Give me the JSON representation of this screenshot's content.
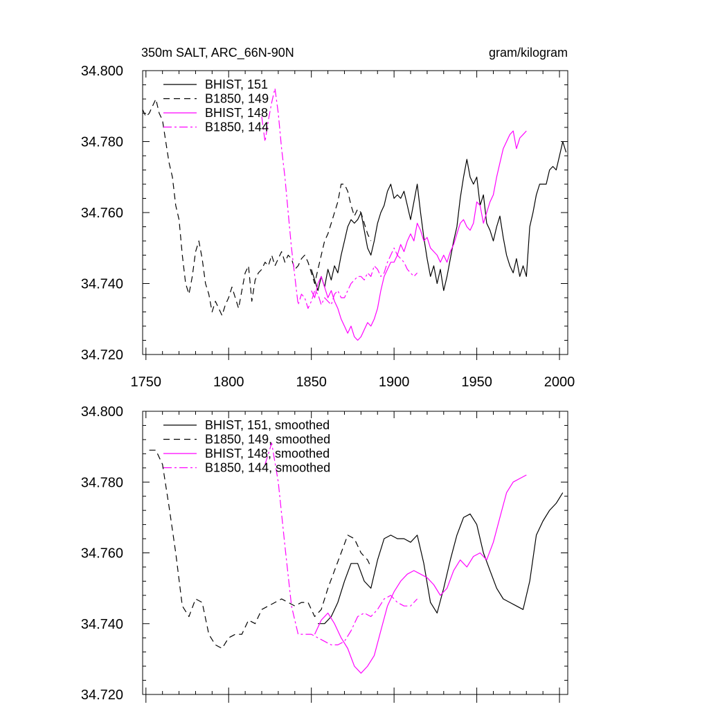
{
  "chart_data": [
    {
      "type": "line",
      "title_left": "350m SALT, ARC_66N-90N",
      "title_right": "gram/kilogram",
      "xlim": [
        1748,
        2005
      ],
      "ylim": [
        34.72,
        34.8
      ],
      "xticks": [
        "1750",
        "1800",
        "1850",
        "1900",
        "1950",
        "2000"
      ],
      "yticks": [
        "34.720",
        "34.740",
        "34.760",
        "34.780",
        "34.800"
      ],
      "series": [
        {
          "name": "BHIST, 151",
          "color": "#000000",
          "dash": "solid",
          "x": [
            1850,
            1852,
            1854,
            1856,
            1858,
            1860,
            1862,
            1864,
            1866,
            1868,
            1870,
            1872,
            1874,
            1876,
            1878,
            1880,
            1882,
            1884,
            1886,
            1888,
            1890,
            1892,
            1894,
            1896,
            1898,
            1900,
            1902,
            1904,
            1906,
            1908,
            1910,
            1912,
            1914,
            1916,
            1918,
            1920,
            1922,
            1924,
            1926,
            1928,
            1930,
            1932,
            1934,
            1936,
            1938,
            1940,
            1942,
            1944,
            1946,
            1948,
            1950,
            1952,
            1954,
            1956,
            1958,
            1960,
            1962,
            1964,
            1966,
            1968,
            1970,
            1972,
            1974,
            1976,
            1978,
            1980,
            1982,
            1984,
            1986,
            1988,
            1990,
            1992,
            1994,
            1996,
            1998,
            2000,
            2002,
            2004
          ],
          "values": [
            34.744,
            34.741,
            34.738,
            34.742,
            34.739,
            34.744,
            34.741,
            34.745,
            34.743,
            34.748,
            34.752,
            34.756,
            34.758,
            34.757,
            34.758,
            34.76,
            34.755,
            34.75,
            34.748,
            34.752,
            34.757,
            34.76,
            34.762,
            34.766,
            34.768,
            34.764,
            34.765,
            34.764,
            34.766,
            34.762,
            34.758,
            34.763,
            34.768,
            34.76,
            34.753,
            34.747,
            34.742,
            34.745,
            34.74,
            34.744,
            34.738,
            34.742,
            34.747,
            34.752,
            34.756,
            34.764,
            34.77,
            34.775,
            34.77,
            34.768,
            34.77,
            34.762,
            34.765,
            34.757,
            34.755,
            34.752,
            34.756,
            34.759,
            34.753,
            34.748,
            34.745,
            34.743,
            34.747,
            34.742,
            34.745,
            34.742,
            34.756,
            34.76,
            34.765,
            34.768,
            34.768,
            34.768,
            34.772,
            34.773,
            34.772,
            34.776,
            34.78,
            34.777
          ]
        },
        {
          "name": "B1850, 149",
          "color": "#000000",
          "dash": "dash",
          "x": [
            1748,
            1750,
            1752,
            1754,
            1756,
            1758,
            1760,
            1762,
            1764,
            1766,
            1768,
            1770,
            1772,
            1774,
            1776,
            1778,
            1780,
            1782,
            1784,
            1786,
            1788,
            1790,
            1792,
            1794,
            1796,
            1798,
            1800,
            1802,
            1804,
            1806,
            1808,
            1810,
            1812,
            1814,
            1816,
            1818,
            1820,
            1822,
            1824,
            1826,
            1828,
            1830,
            1832,
            1834,
            1836,
            1838,
            1840,
            1842,
            1844,
            1846,
            1848,
            1850,
            1852,
            1854,
            1856,
            1858,
            1860,
            1862,
            1864,
            1866,
            1868,
            1870,
            1872,
            1874,
            1876,
            1878,
            1880,
            1882,
            1884,
            1886
          ],
          "values": [
            34.789,
            34.787,
            34.788,
            34.79,
            34.792,
            34.788,
            34.786,
            34.78,
            34.774,
            34.77,
            34.762,
            34.758,
            34.748,
            34.74,
            34.737,
            34.742,
            34.749,
            34.752,
            34.747,
            34.74,
            34.737,
            34.732,
            34.735,
            34.733,
            34.731,
            34.734,
            34.736,
            34.739,
            34.736,
            34.733,
            34.738,
            34.743,
            34.745,
            34.735,
            34.741,
            34.743,
            34.744,
            34.746,
            34.745,
            34.748,
            34.745,
            34.747,
            34.749,
            34.746,
            34.748,
            34.747,
            34.744,
            34.745,
            34.747,
            34.748,
            34.746,
            34.743,
            34.74,
            34.744,
            34.748,
            34.752,
            34.754,
            34.757,
            34.76,
            34.763,
            34.768,
            34.768,
            34.766,
            34.762,
            34.759,
            34.761,
            34.76,
            34.757,
            34.754,
            34.752
          ]
        },
        {
          "name": "BHIST, 148",
          "color": "#ff00ff",
          "dash": "solid",
          "x": [
            1850,
            1852,
            1854,
            1856,
            1858,
            1860,
            1862,
            1864,
            1866,
            1868,
            1870,
            1872,
            1874,
            1876,
            1878,
            1880,
            1882,
            1884,
            1886,
            1888,
            1890,
            1892,
            1894,
            1896,
            1898,
            1900,
            1902,
            1904,
            1906,
            1908,
            1910,
            1912,
            1914,
            1916,
            1918,
            1920,
            1922,
            1924,
            1926,
            1928,
            1930,
            1932,
            1934,
            1936,
            1938,
            1940,
            1942,
            1944,
            1946,
            1948,
            1950,
            1952,
            1954,
            1956,
            1958,
            1960,
            1962,
            1964,
            1966,
            1968,
            1970,
            1972,
            1974,
            1976,
            1978,
            1980
          ],
          "values": [
            34.738,
            34.736,
            34.74,
            34.742,
            34.739,
            34.736,
            34.738,
            34.735,
            34.733,
            34.73,
            34.728,
            34.726,
            34.728,
            34.725,
            34.724,
            34.725,
            34.727,
            34.729,
            34.728,
            34.73,
            34.733,
            34.738,
            34.742,
            34.744,
            34.746,
            34.746,
            34.748,
            34.751,
            34.749,
            34.752,
            34.754,
            34.752,
            34.757,
            34.755,
            34.752,
            34.753,
            34.75,
            34.749,
            34.748,
            34.746,
            34.748,
            34.746,
            34.749,
            34.751,
            34.754,
            34.757,
            34.758,
            34.756,
            34.755,
            34.757,
            34.763,
            34.762,
            34.757,
            34.76,
            34.763,
            34.765,
            34.77,
            34.774,
            34.778,
            34.78,
            34.782,
            34.783,
            34.778,
            34.781,
            34.782,
            34.783
          ]
        },
        {
          "name": "B1850, 144",
          "color": "#ff00ff",
          "dash": "dashdot",
          "x": [
            1820,
            1822,
            1824,
            1826,
            1828,
            1830,
            1832,
            1834,
            1836,
            1838,
            1840,
            1842,
            1844,
            1846,
            1848,
            1850,
            1852,
            1854,
            1856,
            1858,
            1860,
            1862,
            1864,
            1866,
            1868,
            1870,
            1872,
            1874,
            1876,
            1878,
            1880,
            1882,
            1884,
            1886,
            1888,
            1890,
            1892,
            1894,
            1896,
            1898,
            1900,
            1902,
            1904,
            1906,
            1908,
            1910,
            1912,
            1914
          ],
          "values": [
            34.787,
            34.78,
            34.786,
            34.791,
            34.795,
            34.788,
            34.778,
            34.77,
            34.76,
            34.75,
            34.742,
            34.734,
            34.737,
            34.736,
            34.733,
            34.735,
            34.738,
            34.737,
            34.734,
            34.736,
            34.735,
            34.734,
            34.737,
            34.738,
            34.736,
            34.736,
            34.738,
            34.74,
            34.741,
            34.742,
            34.742,
            34.741,
            34.743,
            34.742,
            34.745,
            34.744,
            34.742,
            34.743,
            34.746,
            34.748,
            34.75,
            34.748,
            34.747,
            34.746,
            34.744,
            34.743,
            34.742,
            34.743
          ]
        }
      ],
      "legend": {
        "position": "top-left",
        "entries": [
          "BHIST, 151",
          "B1850, 149",
          "BHIST, 148",
          "B1850, 144"
        ]
      }
    },
    {
      "type": "line",
      "xlim": [
        1748,
        2005
      ],
      "ylim": [
        34.72,
        34.8
      ],
      "yticks": [
        "34.720",
        "34.740",
        "34.760",
        "34.780",
        "34.800"
      ],
      "series": [
        {
          "name": "BHIST, 151, smoothed",
          "color": "#000000",
          "dash": "solid",
          "x": [
            1854,
            1858,
            1862,
            1866,
            1870,
            1874,
            1878,
            1882,
            1886,
            1890,
            1894,
            1898,
            1902,
            1906,
            1910,
            1914,
            1918,
            1922,
            1926,
            1930,
            1934,
            1938,
            1942,
            1946,
            1950,
            1954,
            1958,
            1962,
            1966,
            1970,
            1974,
            1978,
            1982,
            1986,
            1990,
            1994,
            1998,
            2002
          ],
          "values": [
            34.74,
            34.74,
            34.742,
            34.746,
            34.752,
            34.757,
            34.757,
            34.752,
            34.75,
            34.758,
            34.764,
            34.765,
            34.764,
            34.764,
            34.763,
            34.765,
            34.757,
            34.746,
            34.743,
            34.75,
            34.758,
            34.765,
            34.77,
            34.771,
            34.768,
            34.76,
            34.755,
            34.75,
            34.747,
            34.746,
            34.745,
            34.744,
            34.752,
            34.765,
            34.769,
            34.772,
            34.774,
            34.777
          ]
        },
        {
          "name": "B1850, 149, smoothed",
          "color": "#000000",
          "dash": "dash",
          "x": [
            1752,
            1756,
            1760,
            1764,
            1768,
            1772,
            1776,
            1780,
            1784,
            1788,
            1792,
            1796,
            1800,
            1804,
            1808,
            1812,
            1816,
            1820,
            1824,
            1828,
            1832,
            1836,
            1840,
            1844,
            1848,
            1852,
            1856,
            1860,
            1864,
            1868,
            1872,
            1876,
            1880,
            1884,
            1886
          ],
          "values": [
            34.789,
            34.789,
            34.785,
            34.773,
            34.76,
            34.745,
            34.742,
            34.747,
            34.746,
            34.737,
            34.734,
            34.733,
            34.736,
            34.737,
            34.737,
            34.741,
            34.74,
            34.744,
            34.745,
            34.746,
            34.747,
            34.746,
            34.745,
            34.746,
            34.746,
            34.742,
            34.744,
            34.75,
            34.755,
            34.76,
            34.765,
            34.764,
            34.76,
            34.758,
            34.756
          ]
        },
        {
          "name": "BHIST, 148, smoothed",
          "color": "#ff00ff",
          "dash": "solid",
          "x": [
            1852,
            1856,
            1860,
            1864,
            1868,
            1872,
            1876,
            1880,
            1884,
            1888,
            1892,
            1896,
            1900,
            1904,
            1908,
            1912,
            1916,
            1920,
            1924,
            1928,
            1932,
            1936,
            1940,
            1944,
            1948,
            1952,
            1956,
            1960,
            1964,
            1968,
            1972,
            1976,
            1980
          ],
          "values": [
            34.737,
            34.741,
            34.743,
            34.74,
            34.736,
            34.733,
            34.728,
            34.726,
            34.728,
            34.731,
            34.738,
            34.745,
            34.749,
            34.752,
            34.754,
            34.755,
            34.754,
            34.753,
            34.751,
            34.748,
            34.75,
            34.755,
            34.758,
            34.756,
            34.759,
            34.76,
            34.758,
            34.763,
            34.77,
            34.777,
            34.78,
            34.781,
            34.782
          ]
        },
        {
          "name": "B1850, 144, smoothed",
          "color": "#ff00ff",
          "dash": "dashdot",
          "x": [
            1822,
            1826,
            1830,
            1834,
            1838,
            1842,
            1846,
            1850,
            1854,
            1858,
            1862,
            1866,
            1870,
            1874,
            1878,
            1882,
            1886,
            1890,
            1894,
            1898,
            1902,
            1906,
            1910,
            1914
          ],
          "values": [
            34.785,
            34.791,
            34.78,
            34.762,
            34.745,
            34.737,
            34.737,
            34.737,
            34.736,
            34.735,
            34.734,
            34.734,
            34.735,
            34.738,
            34.742,
            34.743,
            34.742,
            34.744,
            34.747,
            34.748,
            34.746,
            34.745,
            34.745,
            34.747
          ]
        }
      ],
      "legend": {
        "position": "top-left",
        "entries": [
          "BHIST, 151, smoothed",
          "B1850, 149, smoothed",
          "BHIST, 148, smoothed",
          "B1850, 144, smoothed"
        ]
      }
    }
  ]
}
